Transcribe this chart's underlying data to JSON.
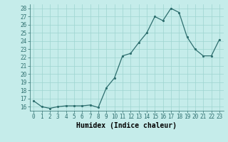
{
  "x": [
    0,
    1,
    2,
    3,
    4,
    5,
    6,
    7,
    8,
    9,
    10,
    11,
    12,
    13,
    14,
    15,
    16,
    17,
    18,
    19,
    20,
    21,
    22,
    23
  ],
  "y": [
    16.7,
    16.0,
    15.8,
    16.0,
    16.1,
    16.1,
    16.1,
    16.2,
    15.9,
    18.3,
    19.5,
    22.2,
    22.5,
    23.8,
    25.0,
    27.0,
    26.5,
    28.0,
    27.5,
    24.5,
    23.0,
    22.2,
    22.2,
    24.2
  ],
  "xlabel": "Humidex (Indice chaleur)",
  "ylim": [
    15.5,
    28.5
  ],
  "xlim": [
    -0.5,
    23.5
  ],
  "yticks": [
    16,
    17,
    18,
    19,
    20,
    21,
    22,
    23,
    24,
    25,
    26,
    27,
    28
  ],
  "xticks": [
    0,
    1,
    2,
    3,
    4,
    5,
    6,
    7,
    8,
    9,
    10,
    11,
    12,
    13,
    14,
    15,
    16,
    17,
    18,
    19,
    20,
    21,
    22,
    23
  ],
  "line_color": "#2d6e6e",
  "marker_color": "#2d6e6e",
  "bg_color": "#c5ecea",
  "grid_color": "#9ed4d0",
  "xlabel_fontsize": 7,
  "tick_fontsize": 5.5
}
